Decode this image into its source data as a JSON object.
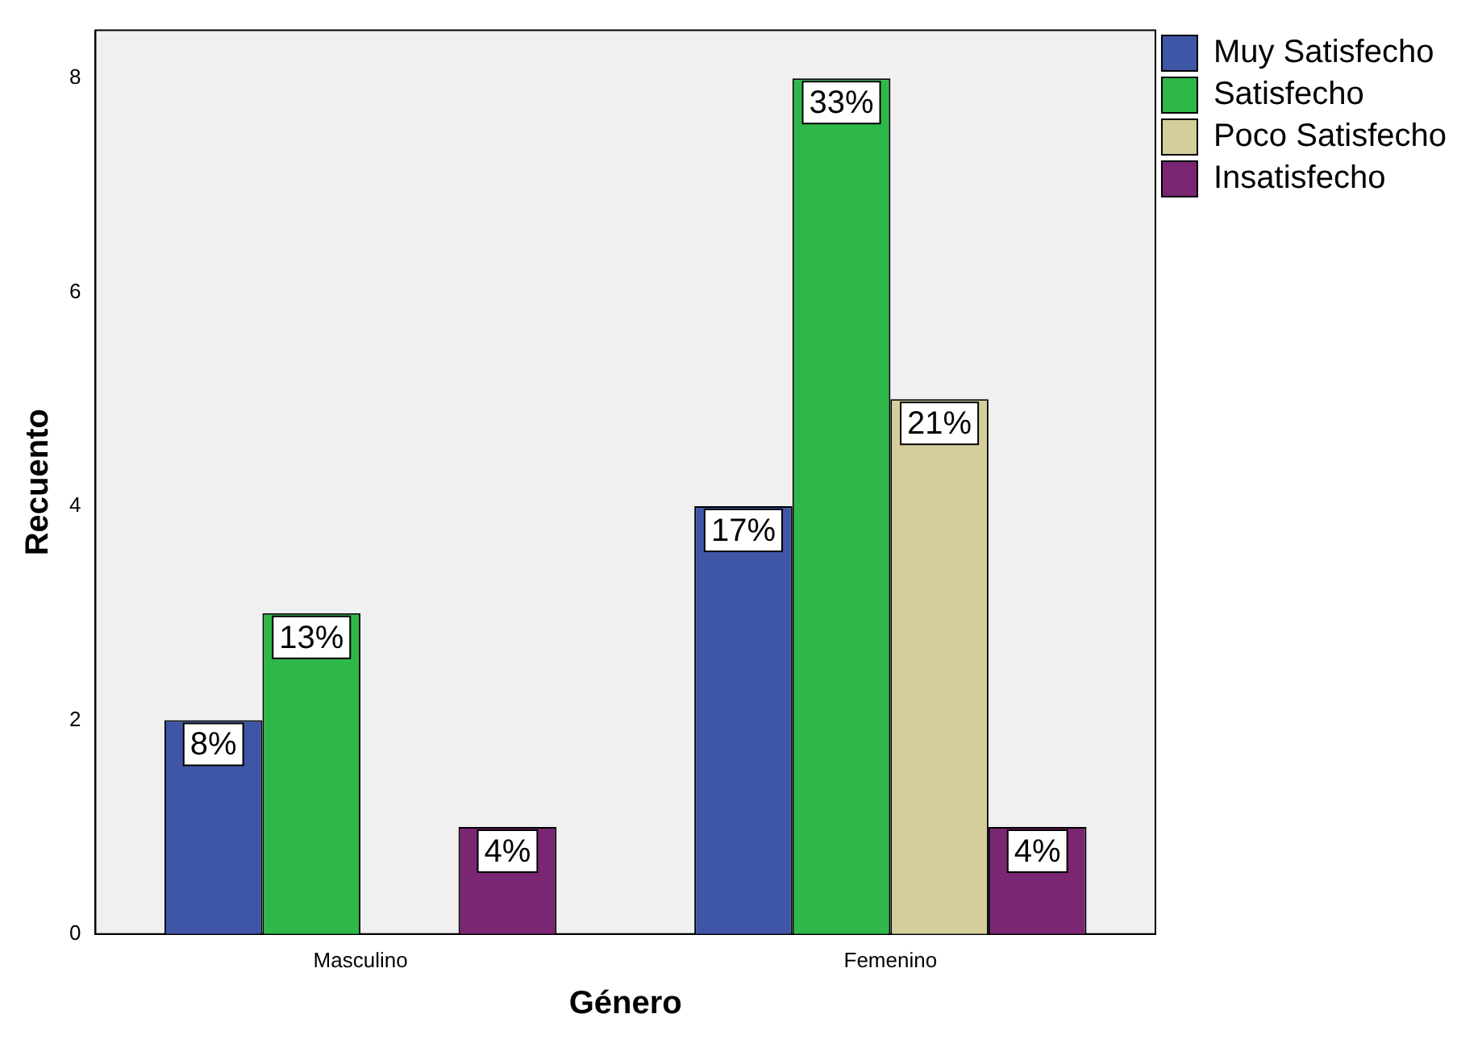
{
  "chart_data": {
    "type": "bar",
    "xlabel": "Género",
    "ylabel": "Recuento",
    "categories": [
      "Masculino",
      "Femenino"
    ],
    "series": [
      {
        "name": "Muy Satisfecho",
        "color": "#3f55a6",
        "values": [
          2,
          4
        ]
      },
      {
        "name": "Satisfecho",
        "color": "#2fb84a",
        "values": [
          3,
          8
        ]
      },
      {
        "name": "Poco Satisfecho",
        "color": "#d4cf9a",
        "values": [
          null,
          5
        ]
      },
      {
        "name": "Insatisfecho",
        "color": "#7a2673",
        "values": [
          1,
          1
        ]
      }
    ],
    "annotations": [
      {
        "text": "8%",
        "y": 2
      },
      {
        "text": "13%",
        "y": 3
      },
      {
        "text": "4%",
        "y": 1
      },
      {
        "text": "17%",
        "y": 4
      },
      {
        "text": "33%",
        "y": 8
      },
      {
        "text": "21%",
        "y": 5
      },
      {
        "text": "4%",
        "y": 1
      }
    ],
    "ylim": [
      0,
      8.45
    ],
    "yticks": [
      0,
      2,
      4,
      6,
      8
    ],
    "grid": false,
    "legend": "top right"
  }
}
